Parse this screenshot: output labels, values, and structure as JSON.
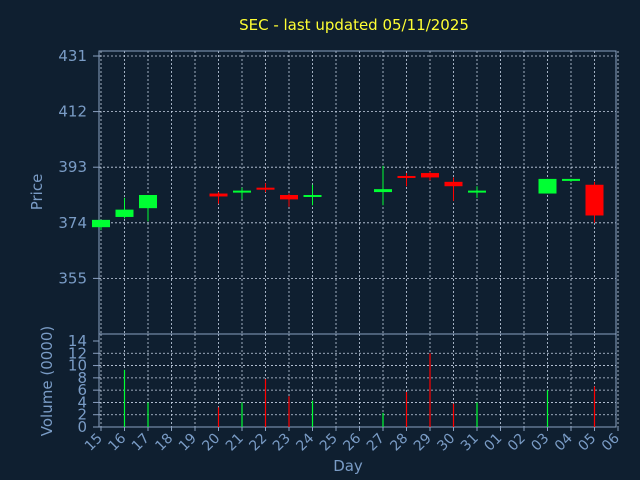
{
  "chart_data": {
    "type": "candlestick",
    "title": "SEC - last updated 05/11/2025",
    "price_axis": {
      "label": "Price",
      "ticks": [
        431,
        412,
        393,
        374,
        355
      ],
      "ylim": [
        336,
        431
      ]
    },
    "volume_axis": {
      "label": "Volume (0000)",
      "ticks": [
        14,
        12,
        10,
        8,
        6,
        4,
        2,
        0
      ],
      "ylim": [
        0,
        14
      ]
    },
    "xlabel": "Day",
    "days": [
      "15",
      "16",
      "17",
      "18",
      "19",
      "20",
      "21",
      "22",
      "23",
      "24",
      "25",
      "26",
      "27",
      "28",
      "29",
      "30",
      "31",
      "01",
      "02",
      "03",
      "04",
      "05",
      "06"
    ],
    "grid": true,
    "colors": {
      "up": "#00ff33",
      "down": "#ff0000",
      "background": "#0f1f30",
      "title": "#ffff33",
      "axis_text": "#7a9cc6"
    },
    "candles": [
      {
        "day": "15",
        "open": 372.5,
        "high": 375,
        "low": 371.5,
        "close": 375
      },
      {
        "day": "16",
        "open": 376,
        "high": 382.5,
        "low": 375.5,
        "close": 378.5
      },
      {
        "day": "17",
        "open": 379,
        "high": 383.5,
        "low": 374.5,
        "close": 383.5
      },
      {
        "day": "20",
        "open": 384,
        "high": 384.5,
        "low": 380.5,
        "close": 383
      },
      {
        "day": "21",
        "open": 384.5,
        "high": 386,
        "low": 382,
        "close": 385
      },
      {
        "day": "22",
        "open": 386,
        "high": 387.5,
        "low": 384.5,
        "close": 385.5
      },
      {
        "day": "23",
        "open": 383.5,
        "high": 384,
        "low": 379.5,
        "close": 382
      },
      {
        "day": "24",
        "open": 383,
        "high": 387,
        "low": 380,
        "close": 383.5
      },
      {
        "day": "27",
        "open": 384.5,
        "high": 393.5,
        "low": 380,
        "close": 385.5
      },
      {
        "day": "28",
        "open": 390,
        "high": 391,
        "low": 386.5,
        "close": 389.5
      },
      {
        "day": "29",
        "open": 391,
        "high": 391.5,
        "low": 388.5,
        "close": 389.5
      },
      {
        "day": "30",
        "open": 388,
        "high": 389.5,
        "low": 381.5,
        "close": 386.5
      },
      {
        "day": "31",
        "open": 384.5,
        "high": 386.5,
        "low": 382.5,
        "close": 385
      },
      {
        "day": "03",
        "open": 384,
        "high": 389,
        "low": 384,
        "close": 389
      },
      {
        "day": "04",
        "open": 388.5,
        "high": 389,
        "low": 388,
        "close": 389
      },
      {
        "day": "05",
        "open": 387,
        "high": 388,
        "low": 374,
        "close": 376.5
      }
    ],
    "volumes": [
      {
        "day": "16",
        "value": 9.3,
        "dir": "up"
      },
      {
        "day": "17",
        "value": 4.0,
        "dir": "up"
      },
      {
        "day": "20",
        "value": 3.2,
        "dir": "down"
      },
      {
        "day": "21",
        "value": 4.0,
        "dir": "up"
      },
      {
        "day": "22",
        "value": 7.8,
        "dir": "down"
      },
      {
        "day": "23",
        "value": 5.0,
        "dir": "down"
      },
      {
        "day": "24",
        "value": 4.3,
        "dir": "up"
      },
      {
        "day": "27",
        "value": 2.3,
        "dir": "up"
      },
      {
        "day": "28",
        "value": 5.7,
        "dir": "down"
      },
      {
        "day": "29",
        "value": 12.0,
        "dir": "down"
      },
      {
        "day": "30",
        "value": 3.8,
        "dir": "down"
      },
      {
        "day": "31",
        "value": 4.0,
        "dir": "up"
      },
      {
        "day": "03",
        "value": 6.0,
        "dir": "up"
      },
      {
        "day": "05",
        "value": 6.6,
        "dir": "down"
      }
    ]
  }
}
